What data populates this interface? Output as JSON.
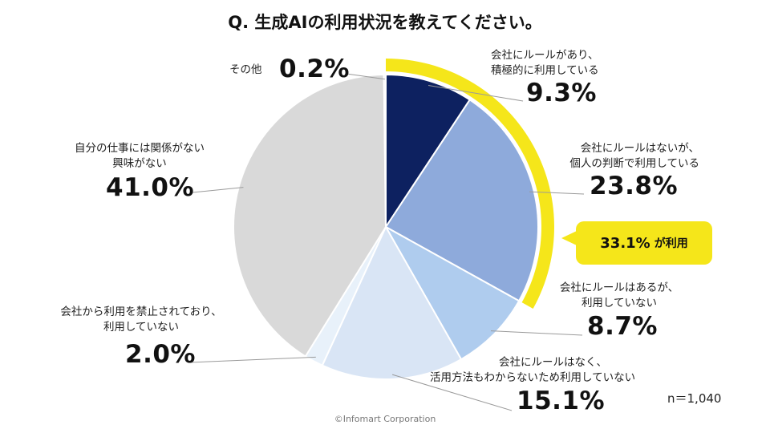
{
  "chart_data": {
    "type": "pie",
    "title": "Q. 生成AIの利用状況を教えてください。",
    "slices": [
      {
        "label_lines": [
          "会社にルールがあり、",
          "積極的に利用している"
        ],
        "value": 9.3,
        "pct_text": "9.3%",
        "color": "#0d2160"
      },
      {
        "label_lines": [
          "会社にルールはないが、",
          "個人の判断で利用している"
        ],
        "value": 23.8,
        "pct_text": "23.8%",
        "color": "#8eaadb"
      },
      {
        "label_lines": [
          "会社にルールはあるが、",
          "利用していない"
        ],
        "value": 8.7,
        "pct_text": "8.7%",
        "color": "#afccee"
      },
      {
        "label_lines": [
          "会社にルールはなく、",
          "活用方法もわからないため利用していない"
        ],
        "value": 15.1,
        "pct_text": "15.1%",
        "color": "#d9e5f5"
      },
      {
        "label_lines": [
          "会社から利用を禁止されており、",
          "利用していない"
        ],
        "value": 2.0,
        "pct_text": "2.0%",
        "color": "#e8f1fa"
      },
      {
        "label_lines": [
          "自分の仕事には関係がない",
          "興味がない"
        ],
        "value": 41.0,
        "pct_text": "41.0%",
        "color": "#d9d9d9"
      },
      {
        "label_lines": [
          "その他"
        ],
        "value": 0.2,
        "pct_text": "0.2%",
        "color": "#f2f2f2"
      }
    ],
    "highlight": {
      "value_text": "33.1%",
      "suffix": "が利用",
      "color": "#f5e61a"
    }
  },
  "sample_size": "n＝1,040",
  "footer": "©Infomart Corporation"
}
